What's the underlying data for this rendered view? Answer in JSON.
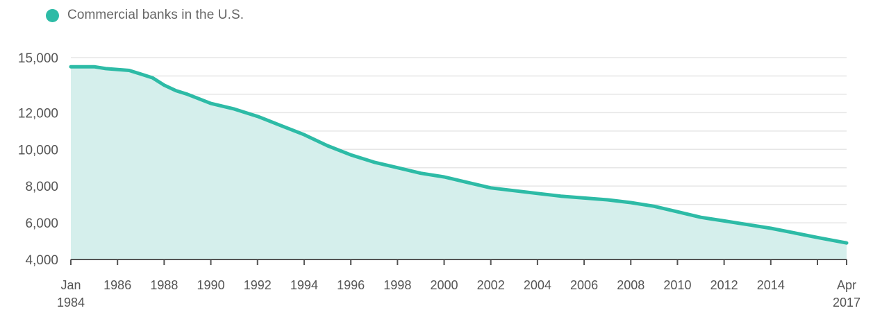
{
  "chart_data": {
    "type": "area",
    "title": "",
    "xlabel": "",
    "ylabel": "",
    "legend_position": "top-left",
    "grid": true,
    "colors": {
      "series_line": "#2dbba6",
      "series_fill": "#d5efec",
      "axis": "#555555",
      "grid": "#e6e6e6",
      "text": "#555555"
    },
    "x_range": [
      1984.0,
      2017.25
    ],
    "ylim": [
      4000,
      15000
    ],
    "y_ticks": [
      {
        "value": 4000,
        "label": "4,000"
      },
      {
        "value": 6000,
        "label": "6,000"
      },
      {
        "value": 8000,
        "label": "8,000"
      },
      {
        "value": 10000,
        "label": "10,000"
      },
      {
        "value": 12000,
        "label": "12,000"
      },
      {
        "value": 15000,
        "label": "15,000"
      }
    ],
    "x_ticks": [
      {
        "value": 1984.0,
        "line1": "Jan",
        "line2": "1984"
      },
      {
        "value": 1986,
        "line1": "1986",
        "line2": ""
      },
      {
        "value": 1988,
        "line1": "1988",
        "line2": ""
      },
      {
        "value": 1990,
        "line1": "1990",
        "line2": ""
      },
      {
        "value": 1992,
        "line1": "1992",
        "line2": ""
      },
      {
        "value": 1994,
        "line1": "1994",
        "line2": ""
      },
      {
        "value": 1996,
        "line1": "1996",
        "line2": ""
      },
      {
        "value": 1998,
        "line1": "1998",
        "line2": ""
      },
      {
        "value": 2000,
        "line1": "2000",
        "line2": ""
      },
      {
        "value": 2002,
        "line1": "2002",
        "line2": ""
      },
      {
        "value": 2004,
        "line1": "2004",
        "line2": ""
      },
      {
        "value": 2006,
        "line1": "2006",
        "line2": ""
      },
      {
        "value": 2008,
        "line1": "2008",
        "line2": ""
      },
      {
        "value": 2010,
        "line1": "2010",
        "line2": ""
      },
      {
        "value": 2012,
        "line1": "2012",
        "line2": ""
      },
      {
        "value": 2014,
        "line1": "2014",
        "line2": ""
      },
      {
        "value": 2016,
        "line1": "",
        "line2": ""
      },
      {
        "value": 2017.25,
        "line1": "Apr",
        "line2": "2017"
      }
    ],
    "series": [
      {
        "name": "Commercial banks in the U.S.",
        "x": [
          1984.0,
          1985.0,
          1985.5,
          1986.5,
          1987.0,
          1987.5,
          1988.0,
          1988.5,
          1989.0,
          1990.0,
          1991.0,
          1992.0,
          1993.0,
          1994.0,
          1995.0,
          1996.0,
          1997.0,
          1998.0,
          1999.0,
          2000.0,
          2001.0,
          2002.0,
          2003.0,
          2004.0,
          2005.0,
          2006.0,
          2007.0,
          2008.0,
          2009.0,
          2010.0,
          2011.0,
          2012.0,
          2013.0,
          2014.0,
          2015.0,
          2016.0,
          2017.25
        ],
        "y": [
          14500,
          14500,
          14400,
          14300,
          14100,
          13900,
          13500,
          13200,
          13000,
          12500,
          12200,
          11800,
          11300,
          10800,
          10200,
          9700,
          9300,
          9000,
          8700,
          8500,
          8200,
          7900,
          7750,
          7600,
          7450,
          7350,
          7250,
          7100,
          6900,
          6600,
          6300,
          6100,
          5900,
          5700,
          5450,
          5200,
          4900
        ]
      }
    ]
  }
}
